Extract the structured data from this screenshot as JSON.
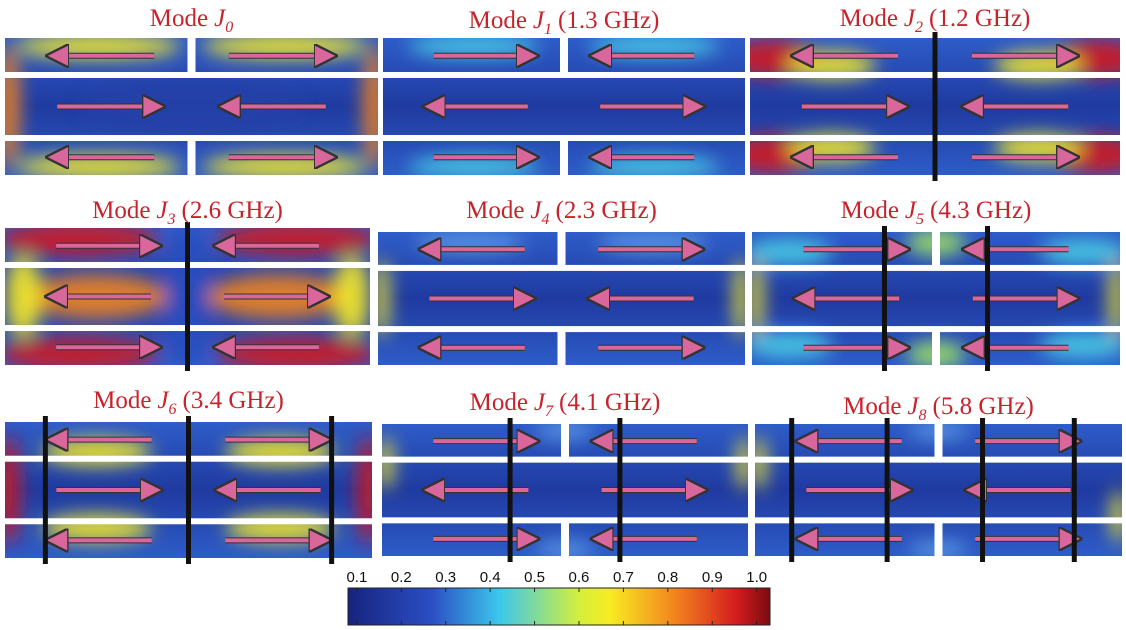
{
  "modes": [
    {
      "prefix": "Mode",
      "symbol": "J",
      "index": "0"
    },
    {
      "prefix": "Mode",
      "symbol": "J",
      "index": "1",
      "frequency": "(1.3 GHz)"
    },
    {
      "prefix": "Mode",
      "symbol": "J",
      "index": "2",
      "frequency": "(1.2 GHz)"
    },
    {
      "prefix": "Mode",
      "symbol": "J",
      "index": "3",
      "frequency": "(2.6 GHz)"
    },
    {
      "prefix": "Mode",
      "symbol": "J",
      "index": "4",
      "frequency": "(2.3 GHz)"
    },
    {
      "prefix": "Mode",
      "symbol": "J",
      "index": "5",
      "frequency": "(4.3 GHz)"
    },
    {
      "prefix": "Mode",
      "symbol": "J",
      "index": "6",
      "frequency": "(3.4 GHz)"
    },
    {
      "prefix": "Mode",
      "symbol": "J",
      "index": "7",
      "frequency": "(4.1 GHz)"
    },
    {
      "prefix": "Mode",
      "symbol": "J",
      "index": "8",
      "frequency": "(5.8 GHz)"
    }
  ],
  "colorbar": {
    "lim": [
      0.08,
      1.03
    ],
    "ticks": [
      0.1,
      0.2,
      0.3,
      0.4,
      0.5,
      0.6,
      0.7,
      0.8,
      0.9,
      {
        "value": 1,
        "label": "1.0"
      }
    ]
  }
}
